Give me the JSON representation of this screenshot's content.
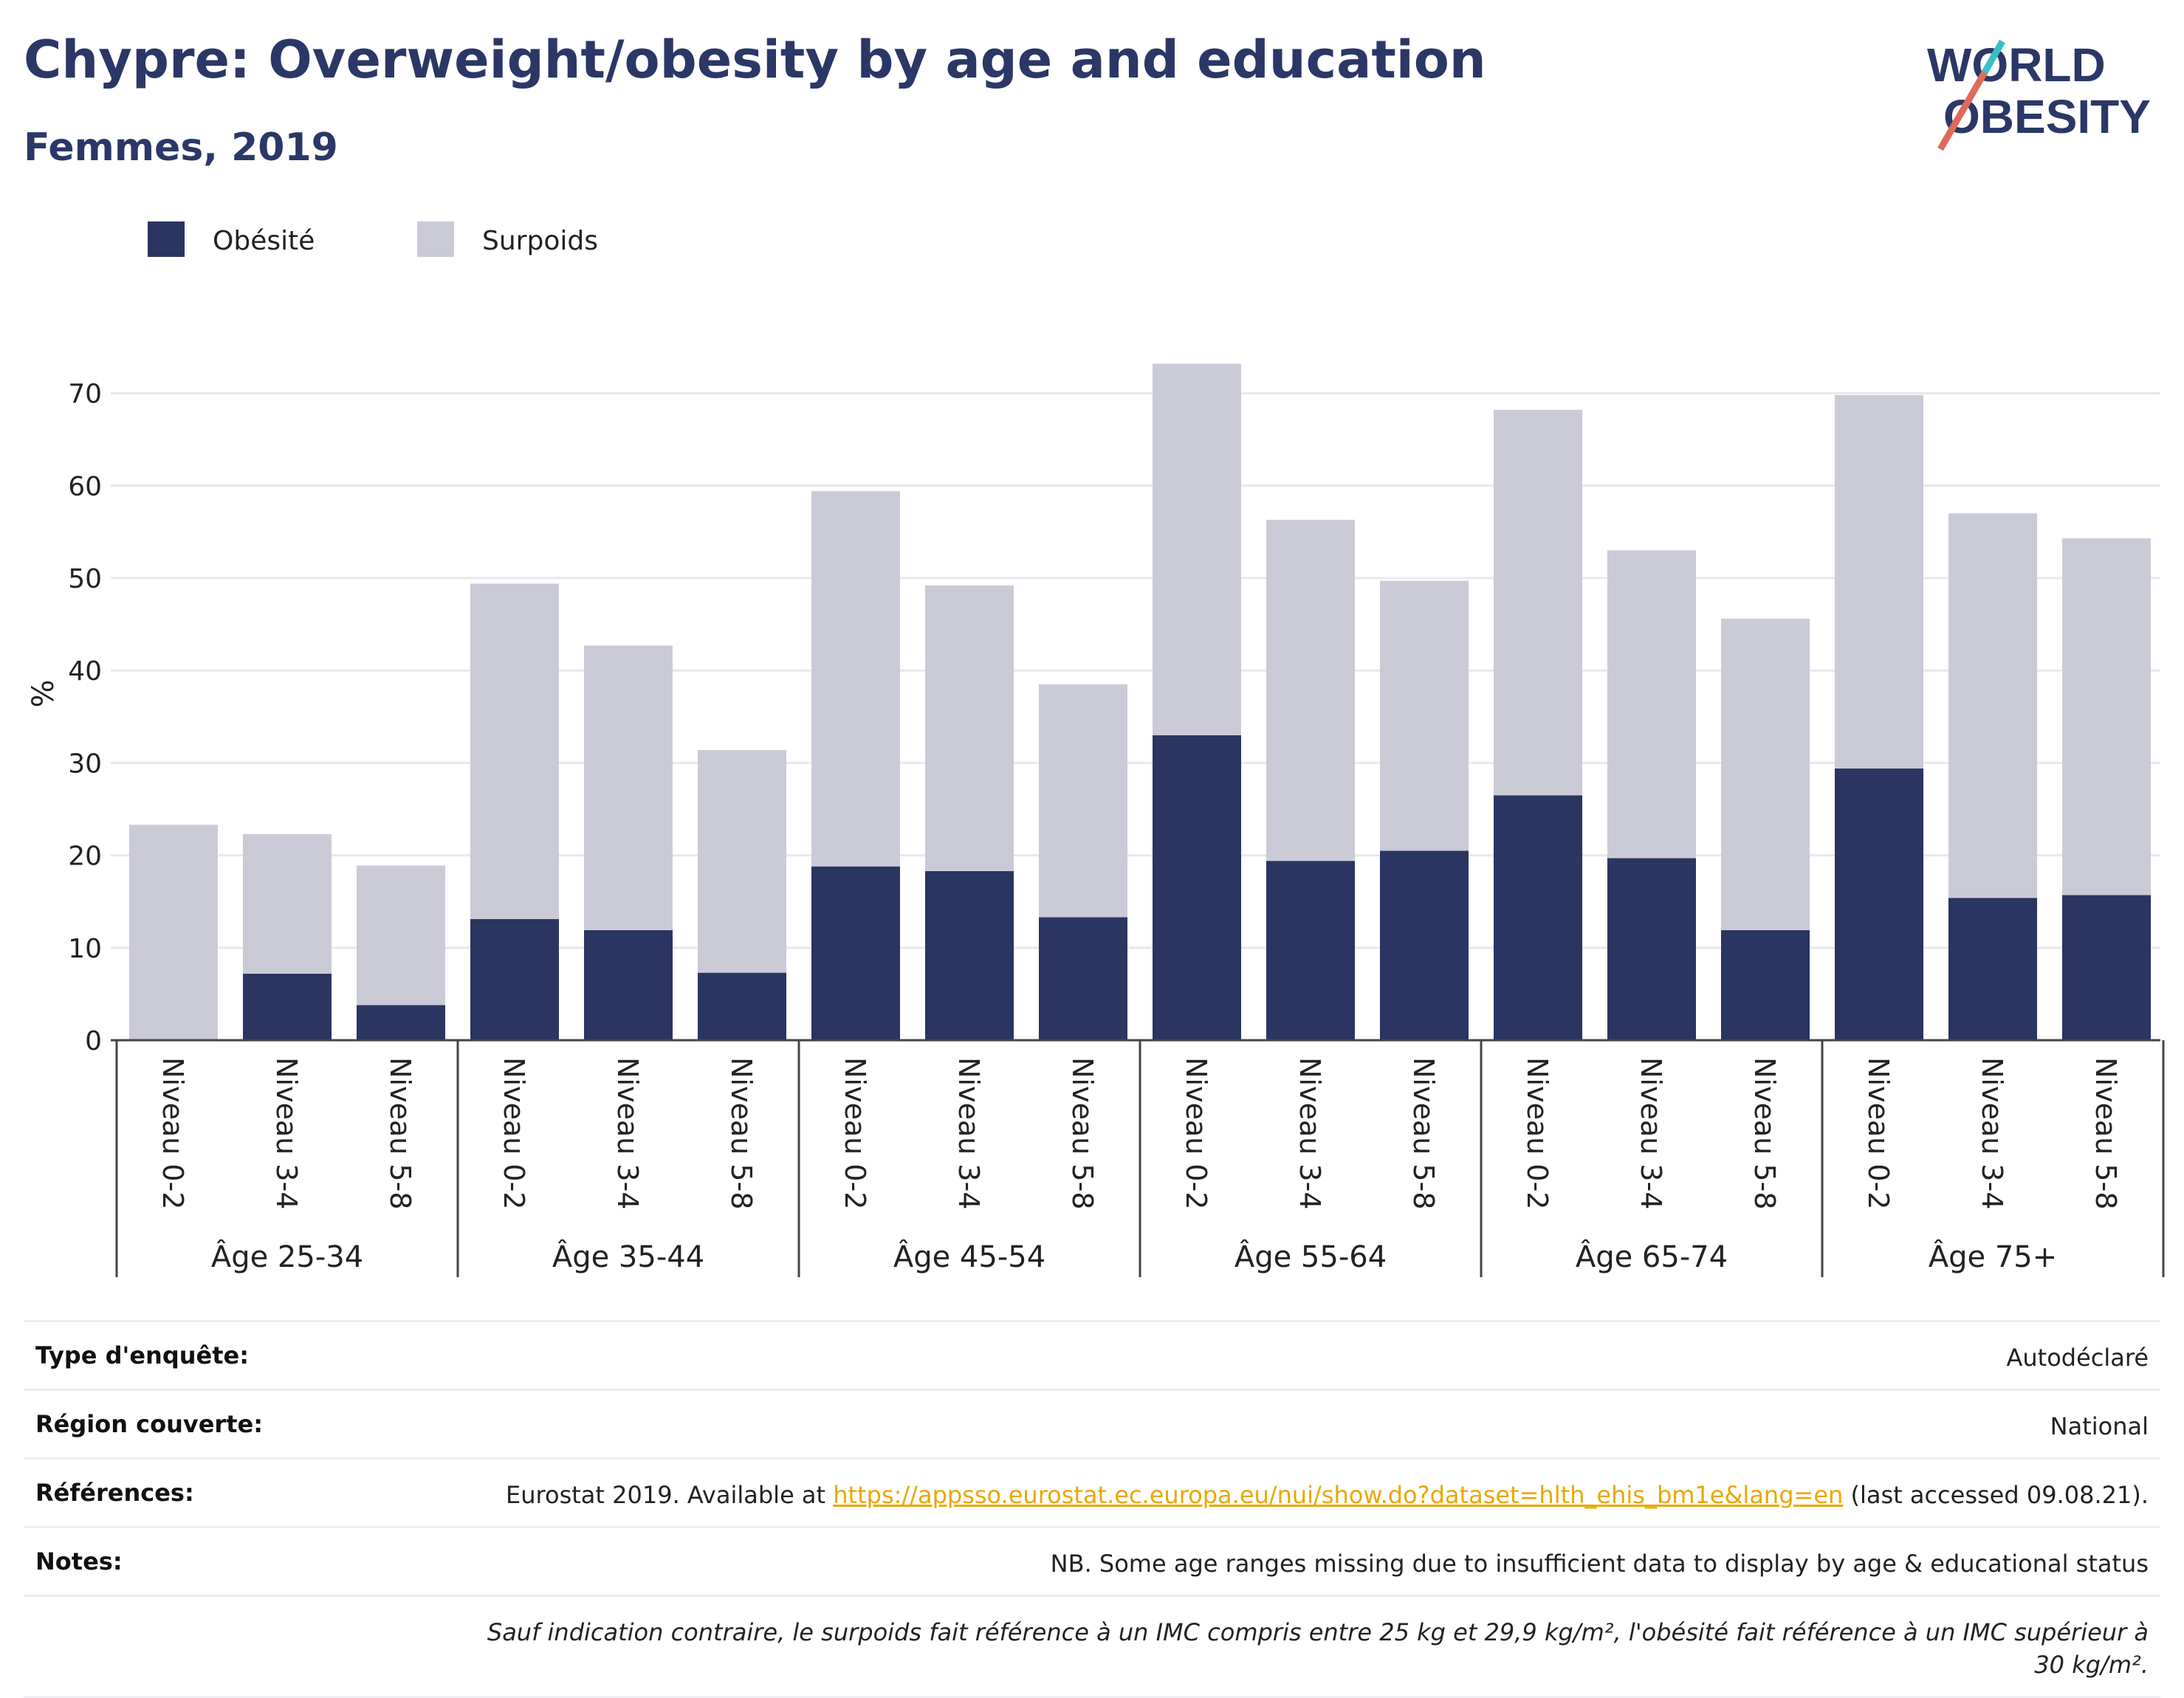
{
  "title": "Chypre: Overweight/obesity by age and education",
  "subtitle": "Femmes, 2019",
  "logo": {
    "line1": "WORLD",
    "line2": "OBESITY"
  },
  "colors": {
    "obesity": "#2b3561",
    "overweight": "#cacbd7",
    "title": "#2b3766",
    "link": "#e8a800",
    "grid": "#e8e8ee"
  },
  "chart_data": {
    "type": "bar",
    "stacked": true,
    "ylabel": "%",
    "ylim": [
      0,
      75
    ],
    "yticks": [
      0,
      10,
      20,
      30,
      40,
      50,
      60,
      70
    ],
    "grid": true,
    "legend_position": "top-left",
    "groups": [
      {
        "label": "Âge 25-34",
        "categories": [
          "Niveau 0-2",
          "Niveau 3-4",
          "Niveau 5-8"
        ]
      },
      {
        "label": "Âge 35-44",
        "categories": [
          "Niveau 0-2",
          "Niveau 3-4",
          "Niveau 5-8"
        ]
      },
      {
        "label": "Âge 45-54",
        "categories": [
          "Niveau 0-2",
          "Niveau 3-4",
          "Niveau 5-8"
        ]
      },
      {
        "label": "Âge 55-64",
        "categories": [
          "Niveau 0-2",
          "Niveau 3-4",
          "Niveau 5-8"
        ]
      },
      {
        "label": "Âge 65-74",
        "categories": [
          "Niveau 0-2",
          "Niveau 3-4",
          "Niveau 5-8"
        ]
      },
      {
        "label": "Âge 75+",
        "categories": [
          "Niveau 0-2",
          "Niveau 3-4",
          "Niveau 5-8"
        ]
      }
    ],
    "series": [
      {
        "name": "Obésité",
        "color": "#2b3561",
        "values": [
          0,
          7.2,
          3.8,
          13.1,
          11.9,
          7.3,
          18.8,
          18.3,
          13.3,
          33.0,
          19.4,
          20.5,
          26.5,
          19.7,
          11.9,
          29.4,
          15.4,
          15.7
        ]
      },
      {
        "name": "Surpoids",
        "color": "#cacbd7",
        "values": [
          23.3,
          15.1,
          15.1,
          36.3,
          30.8,
          24.1,
          40.6,
          30.9,
          25.2,
          40.2,
          36.9,
          29.2,
          41.7,
          33.3,
          33.7,
          40.4,
          41.6,
          38.6
        ]
      }
    ]
  },
  "info": {
    "survey_type": {
      "label": "Type d'enquête:",
      "value": "Autodéclaré"
    },
    "region": {
      "label": "Région couverte:",
      "value": "National"
    },
    "references": {
      "label": "Références:",
      "prefix": "Eurostat 2019. Available at ",
      "link": "https://appsso.eurostat.ec.europa.eu/nui/show.do?dataset=hlth_ehis_bm1e&lang=en",
      "suffix": " (last accessed 09.08.21)."
    },
    "notes": {
      "label": "Notes:",
      "value": "NB. Some age ranges missing due to insufficient data to display by age & educational status"
    },
    "footnote": "Sauf indication contraire, le surpoids fait référence à un IMC compris entre 25 kg et 29,9 kg/m², l'obésité fait référence à un IMC supérieur à 30 kg/m²."
  }
}
